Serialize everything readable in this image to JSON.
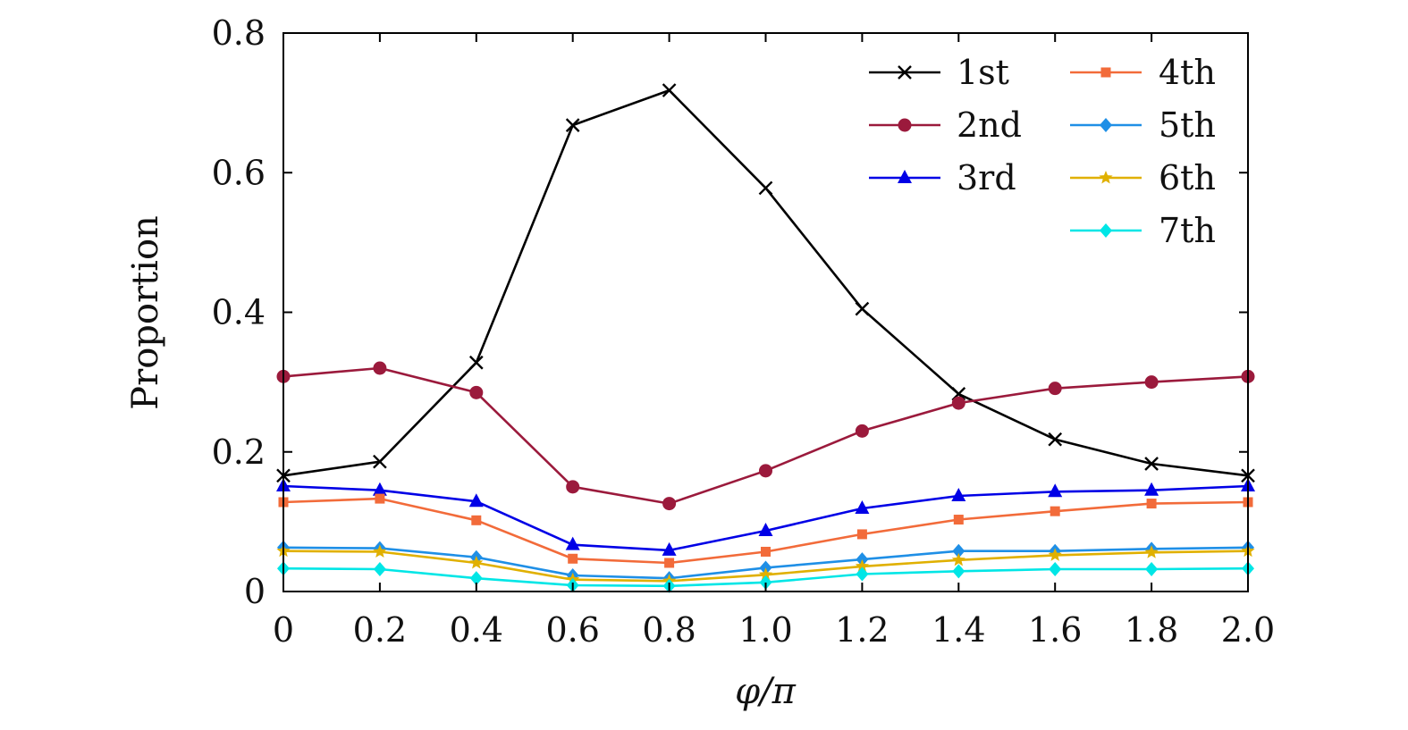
{
  "chart_data": {
    "type": "line",
    "xlabel": "φ/π",
    "ylabel": "Proportion",
    "xlim": [
      0,
      2.0
    ],
    "ylim": [
      0,
      0.8
    ],
    "x": [
      0,
      0.2,
      0.4,
      0.6,
      0.8,
      1.0,
      1.2,
      1.4,
      1.6,
      1.8,
      2.0
    ],
    "x_tick_labels": [
      "0",
      "0.2",
      "0.4",
      "0.6",
      "0.8",
      "1.0",
      "1.2",
      "1.4",
      "1.6",
      "1.8",
      "2.0"
    ],
    "y_ticks": [
      0,
      0.2,
      0.4,
      0.6,
      0.8
    ],
    "y_tick_labels": [
      "0",
      "0.2",
      "0.4",
      "0.6",
      "0.8"
    ],
    "grid": false,
    "legend_position": "top-right",
    "series": [
      {
        "name": "1st",
        "color": "#000000",
        "marker": "x",
        "values": [
          0.166,
          0.186,
          0.328,
          0.668,
          0.718,
          0.578,
          0.405,
          0.283,
          0.218,
          0.183,
          0.166
        ]
      },
      {
        "name": "2nd",
        "color": "#9b1a3c",
        "marker": "circle",
        "values": [
          0.308,
          0.32,
          0.285,
          0.15,
          0.126,
          0.173,
          0.23,
          0.27,
          0.291,
          0.3,
          0.308
        ]
      },
      {
        "name": "3rd",
        "color": "#0000e6",
        "marker": "triangle",
        "values": [
          0.151,
          0.145,
          0.129,
          0.067,
          0.059,
          0.087,
          0.119,
          0.137,
          0.143,
          0.145,
          0.151
        ]
      },
      {
        "name": "4th",
        "color": "#f26b3a",
        "marker": "square",
        "values": [
          0.128,
          0.133,
          0.102,
          0.047,
          0.041,
          0.057,
          0.082,
          0.103,
          0.115,
          0.126,
          0.128
        ]
      },
      {
        "name": "5th",
        "color": "#1f8fe6",
        "marker": "diamond",
        "values": [
          0.063,
          0.062,
          0.049,
          0.023,
          0.019,
          0.034,
          0.046,
          0.058,
          0.058,
          0.061,
          0.063
        ]
      },
      {
        "name": "6th",
        "color": "#e0b000",
        "marker": "star",
        "values": [
          0.058,
          0.057,
          0.041,
          0.017,
          0.015,
          0.024,
          0.036,
          0.045,
          0.052,
          0.056,
          0.058
        ]
      },
      {
        "name": "7th",
        "color": "#00e6e6",
        "marker": "diamond",
        "values": [
          0.033,
          0.032,
          0.019,
          0.009,
          0.008,
          0.013,
          0.025,
          0.029,
          0.032,
          0.032,
          0.033
        ]
      }
    ]
  }
}
